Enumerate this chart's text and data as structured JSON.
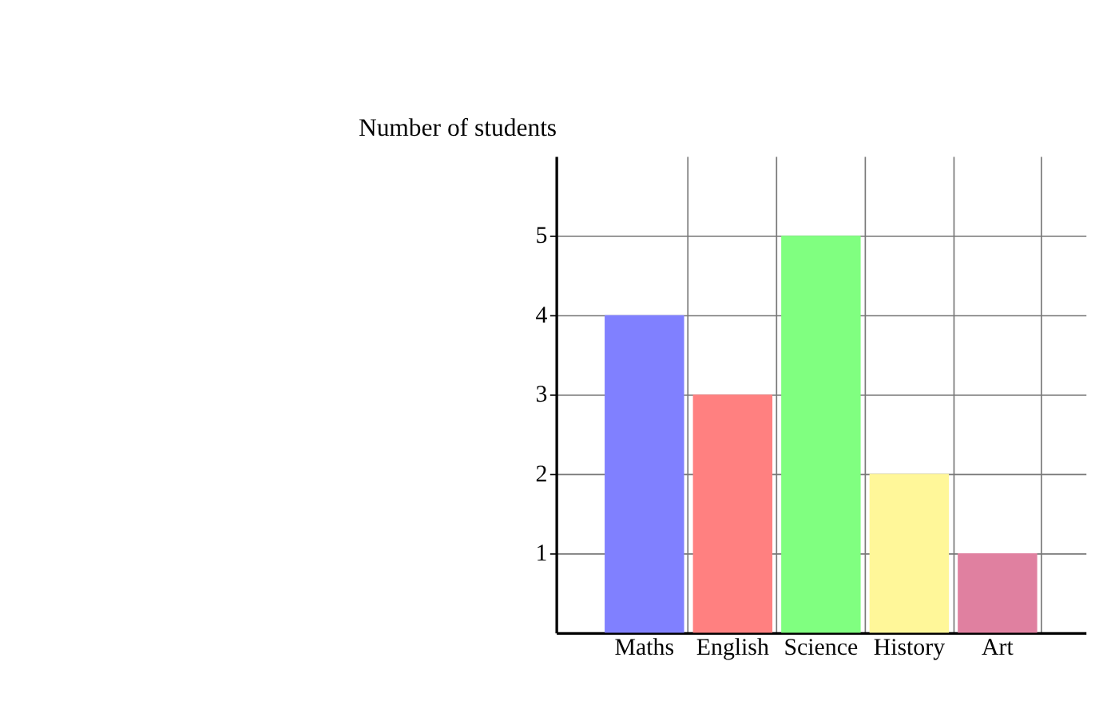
{
  "chart_data": {
    "type": "bar",
    "ylabel": "Number of students",
    "categories": [
      "Maths",
      "English",
      "Science",
      "History",
      "Art"
    ],
    "values": [
      4,
      3,
      5,
      2,
      1
    ],
    "colors": [
      "#8080ff",
      "#ff8080",
      "#80ff80",
      "#fff799",
      "#e080a0"
    ],
    "ylim": [
      0,
      6
    ],
    "yticks": [
      1,
      2,
      3,
      4,
      5
    ],
    "grid": true
  }
}
